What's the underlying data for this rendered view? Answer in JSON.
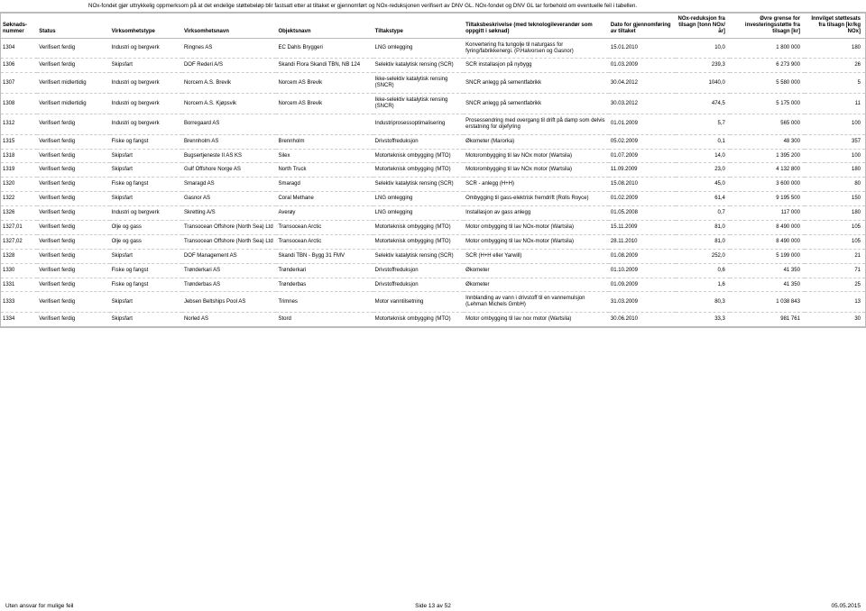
{
  "disclaimer": "NOx-fondet gjør uttrykkelig oppmerksom på at det endelige støttebeløp blir fastsatt etter at tiltaket er gjennomført og NOx-reduksjonen verifisert av DNV GL. NOx-fondet og DNV GL tar forbehold om eventuelle feil i tabellen.",
  "headers": [
    "Søknads-\nnummer",
    "Status",
    "Virksomhetstype",
    "Virksomhetsnavn",
    "Objektsnavn",
    "Tiltakstype",
    "Tiltaksbeskrivelse (med teknologileverandør som oppgitt i søknad)",
    "Dato for gjennomføring av tiltaket",
    "NOx-reduksjon fra tilsagn [tonn NOx/år]",
    "Øvre grense for investeringsstøtte fra tilsagn [kr]",
    "Innvilget støttesats fra tilsagn [kr/kg NOx]"
  ],
  "rows": [
    [
      "1304",
      "Verifisert ferdig",
      "Industri og bergverk",
      "Ringnes AS",
      "EC Dahls Bryggeri",
      "LNG omlegging",
      "Konvertering fra tungolje til naturgass for fyring/fabrikkenergi. (P.Halvorsen og Gasnor)",
      "15.01.2010",
      "10,0",
      "1 800 000",
      "180"
    ],
    [
      "1306",
      "Verifisert ferdig",
      "Skipsfart",
      "DOF Rederi A/S",
      "Skandi Flora Skandi TBN, NB 124",
      "Selektiv katalytisk rensing (SCR)",
      "SCR installasjon på nybygg",
      "01.03.2009",
      "239,3",
      "6 273 900",
      "26"
    ],
    [
      "1307",
      "Verifisert midlertidig",
      "Industri og bergverk",
      "Norcem A.S. Brevik",
      "Norcem AS Brevik",
      "Ikke-selektiv katalytisk rensing (SNCR)",
      "SNCR anlegg på sementfabrikk",
      "30.04.2012",
      "1040,0",
      "5 580 000",
      "5"
    ],
    [
      "1308",
      "Verifisert midlertidig",
      "Industri og bergverk",
      "Norcem A.S. Kjøpsvik",
      "Norcem AS Brevik",
      "Ikke-selektiv katalytisk rensing (SNCR)",
      "SNCR anlegg på sementfabrikk",
      "30.03.2012",
      "474,5",
      "5 175 000",
      "11"
    ],
    [
      "1312",
      "Verifisert ferdig",
      "Industri og bergverk",
      "Borregaard AS",
      "",
      "Industriprosessoptimalisering",
      "Prosessendring med overgang til drift på damp som delvis erstatning for oljefyring",
      "01.01.2009",
      "5,7",
      "565 000",
      "100"
    ],
    [
      "1315",
      "Verifisert ferdig",
      "Fiske og fangst",
      "Brennholm AS",
      "Brennholm",
      "Drivstoffreduksjon",
      "Økometer (Marorka)",
      "05.02.2009",
      "0,1",
      "48 300",
      "357"
    ],
    [
      "1318",
      "Verifisert ferdig",
      "Skipsfart",
      "Bugsertjeneste II AS KS",
      "Silex",
      "Motorteknisk ombygging (MTO)",
      "Motorombygging til lav NOx motor (Wartsila)",
      "01.07.2009",
      "14,0",
      "1 395 200",
      "100"
    ],
    [
      "1319",
      "Verifisert ferdig",
      "Skipsfart",
      "Gulf Offshore Norge AS",
      "North Truck",
      "Motorteknisk ombygging (MTO)",
      "Motorombygging til lav NOx motor (Wartsila)",
      "11.09.2009",
      "23,0",
      "4 132 800",
      "180"
    ],
    [
      "1320",
      "Verifisert ferdig",
      "Fiske og fangst",
      "Smaragd AS",
      "Smaragd",
      "Selektiv katalytisk rensing (SCR)",
      "SCR - anlegg (H+H)",
      "15.08.2010",
      "45,0",
      "3 600 000",
      "80"
    ],
    [
      "1322",
      "Verifisert ferdig",
      "Skipsfart",
      "Gasnor AS",
      "Coral Methane",
      "LNG omlegging",
      "Ombygging til gass-elektrisk fremdrift (Rolls Royce)",
      "01.02.2009",
      "61,4",
      "9 195 500",
      "150"
    ],
    [
      "1326",
      "Verifisert ferdig",
      "Industri og bergverk",
      "Skretting A/S",
      "Averøy",
      "LNG omlegging",
      "Installasjon av gass anlegg",
      "01.05.2008",
      "0,7",
      "117 000",
      "180"
    ],
    [
      "1327,01",
      "Verifisert ferdig",
      "Olje og gass",
      "Transocean Offshore (North Sea) Ltd",
      "Transocean Arctic",
      "Motorteknisk ombygging (MTO)",
      "Motor ombygging til lav NOx-motor (Wartsila)",
      "15.11.2009",
      "81,0",
      "8 490 000",
      "105"
    ],
    [
      "1327,02",
      "Verifisert ferdig",
      "Olje og gass",
      "Transocean Offshore (North Sea) Ltd",
      "Transocean Arctic",
      "Motorteknisk ombygging (MTO)",
      "Motor ombygging til lav NOx-motor (Wartsila)",
      "28.11.2010",
      "81,0",
      "8 490 000",
      "105"
    ],
    [
      "1328",
      "Verifisert ferdig",
      "Skipsfart",
      "DOF Management AS",
      "Skandi TBN - Bygg 31 FMV",
      "Selektiv katalytisk rensing (SCR)",
      "SCR (H+H eller Yarwill)",
      "01.08.2009",
      "252,0",
      "5 199 000",
      "21"
    ],
    [
      "1330",
      "Verifisert ferdig",
      "Fiske og fangst",
      "Trønderkari AS",
      "Trønderkari",
      "Drivstoffreduksjon",
      "Økometer",
      "01.10.2009",
      "0,6",
      "41 350",
      "71"
    ],
    [
      "1331",
      "Verifisert ferdig",
      "Fiske og fangst",
      "Trønderbas AS",
      "Trønderbas",
      "Drivstoffreduksjon",
      "Økometer",
      "01.09.2009",
      "1,6",
      "41 350",
      "25"
    ],
    [
      "1333",
      "Verifisert ferdig",
      "Skipsfart",
      "Jebsen Beltships Pool AS",
      "Trimnes",
      "Motor vanntilsetning",
      "Innblanding av vann i drivstoff til en vannemulsjon (Lehman Michels GmbH)",
      "31.03.2009",
      "80,3",
      "1 038 843",
      "13"
    ],
    [
      "1334",
      "Verifisert ferdig",
      "Skipsfart",
      "Norled AS",
      "Stord",
      "Motorteknisk ombygging (MTO)",
      "Motor ombygging til lav nox motor (Wartsila)",
      "30.06.2010",
      "33,3",
      "981 761",
      "30"
    ]
  ],
  "footer": {
    "left": "Uten ansvar for mulige feil",
    "center": "Side 13 av 52",
    "right": "05.05.2015"
  }
}
